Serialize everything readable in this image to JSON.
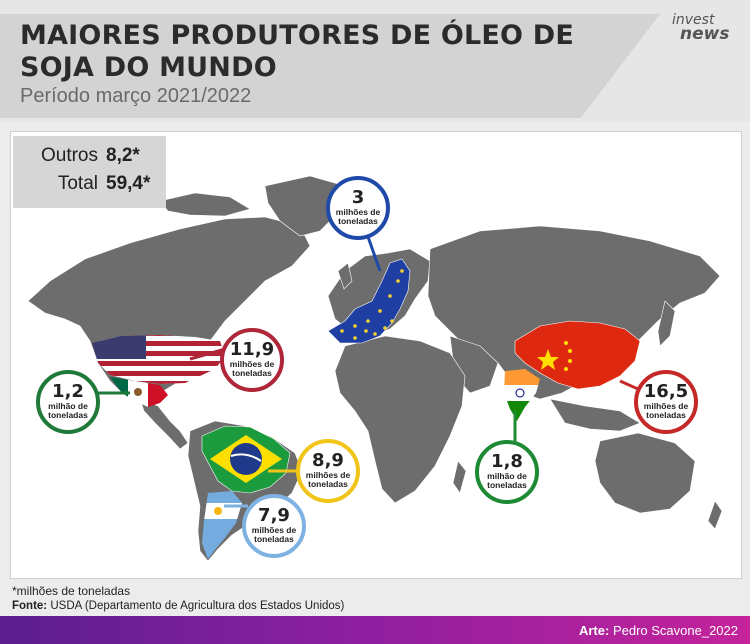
{
  "header": {
    "title_line1": "MAIORES PRODUTORES DE ÓLEO DE",
    "title_line2": "SOJA DO MUNDO",
    "subtitle": "Período março 2021/2022",
    "brand_line1": "invest",
    "brand_line2": "news"
  },
  "totals": {
    "others_label": "Outros",
    "others_value": "8,2*",
    "total_label": "Total",
    "total_value": "59,4*"
  },
  "producers": {
    "eu": {
      "value": "3",
      "unit_l1": "milhões de",
      "unit_l2": "toneladas",
      "color": "#1f4aa8"
    },
    "usa": {
      "value": "11,9",
      "unit_l1": "milhões de",
      "unit_l2": "toneladas",
      "color": "#b0273a"
    },
    "mexico": {
      "value": "1,2",
      "unit_l1": "milhão de",
      "unit_l2": "toneladas",
      "color": "#1f7a3a"
    },
    "brazil": {
      "value": "8,9",
      "unit_l1": "milhões de",
      "unit_l2": "toneladas",
      "color": "#f1c419"
    },
    "argentina": {
      "value": "7,9",
      "unit_l1": "milhões de",
      "unit_l2": "toneladas",
      "color": "#7eb2e2"
    },
    "india": {
      "value": "1,8",
      "unit_l1": "milhão de",
      "unit_l2": "toneladas",
      "color": "#1e8b34"
    },
    "china": {
      "value": "16,5",
      "unit_l1": "milhões de",
      "unit_l2": "toneladas",
      "color": "#c62828"
    }
  },
  "footer": {
    "footnote": "*milhões de toneladas",
    "source_label": "Fonte:",
    "source_text": "USDA (Departamento de Agricultura dos Estados Unidos)",
    "credit_label": "Arte:",
    "credit_text": "Pedro Scavone_2022"
  }
}
